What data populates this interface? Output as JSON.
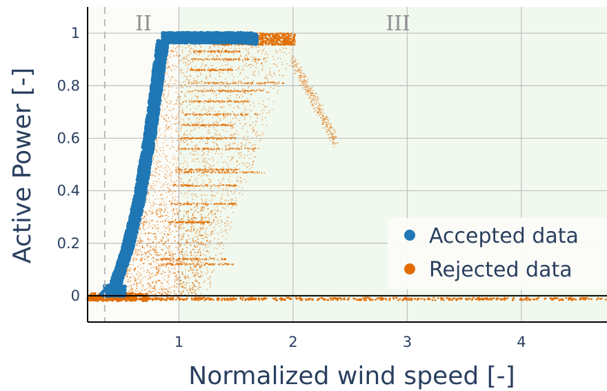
{
  "chart_data": {
    "type": "scatter",
    "xlabel": "Normalized wind speed [-]",
    "ylabel": "Active Power [-]",
    "xlim": [
      0.2,
      4.75
    ],
    "ylim": [
      -0.1,
      1.1
    ],
    "x_ticks": [
      1,
      2,
      3,
      4
    ],
    "y_ticks": [
      0,
      0.2,
      0.4,
      0.6,
      0.8,
      1
    ],
    "x_tick_labels": [
      "1",
      "2",
      "3",
      "4"
    ],
    "y_tick_labels": [
      "0",
      "0.2",
      "0.4",
      "0.6",
      "0.8",
      "1"
    ],
    "grid": true,
    "region_labels": [
      {
        "text": "II",
        "x": 0.6,
        "y": 1.05
      },
      {
        "text": "III",
        "x": 3.05,
        "y": 1.05
      }
    ],
    "cut_in_line_x": 0.35,
    "region_boundaries_x": [
      1,
      2
    ],
    "legend_position": "bottom-right",
    "series": [
      {
        "name": "Accepted data",
        "color": "#1f77b4",
        "description_points": [
          [
            0.35,
            0.0
          ],
          [
            0.45,
            0.05
          ],
          [
            0.55,
            0.18
          ],
          [
            0.65,
            0.36
          ],
          [
            0.75,
            0.62
          ],
          [
            0.82,
            0.85
          ],
          [
            0.86,
            0.97
          ],
          [
            1.0,
            0.98
          ],
          [
            1.3,
            0.98
          ],
          [
            1.6,
            0.98
          ],
          [
            1.75,
            0.97
          ]
        ]
      },
      {
        "name": "Rejected data",
        "color": "#e06c00",
        "description_points": [
          [
            0.35,
            -0.01
          ],
          [
            1.0,
            -0.01
          ],
          [
            2.0,
            -0.01
          ],
          [
            4.75,
            -0.01
          ],
          [
            1.5,
            0.5
          ],
          [
            1.5,
            0.8
          ],
          [
            1.3,
            0.3
          ],
          [
            1.2,
            0.12
          ],
          [
            1.9,
            0.99
          ],
          [
            2.0,
            0.9
          ],
          [
            2.2,
            0.7
          ],
          [
            2.35,
            0.6
          ]
        ]
      }
    ]
  }
}
